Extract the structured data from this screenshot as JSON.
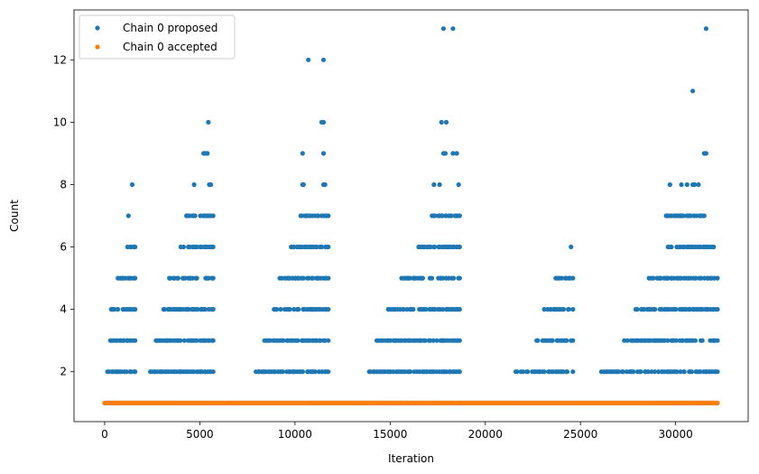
{
  "chart_data": {
    "type": "scatter",
    "title": "",
    "xlabel": "Iteration",
    "ylabel": "Count",
    "xlim": [
      -1610,
      33810
    ],
    "ylim": [
      0.4,
      13.6
    ],
    "xticks": [
      0,
      5000,
      10000,
      15000,
      20000,
      25000,
      30000
    ],
    "xtick_labels": [
      "0",
      "5000",
      "10000",
      "15000",
      "20000",
      "25000",
      "30000"
    ],
    "yticks": [
      2,
      4,
      6,
      8,
      10,
      12
    ],
    "ytick_labels": [
      "2",
      "4",
      "6",
      "8",
      "10",
      "12"
    ],
    "grid": false,
    "legend_position": "top-left",
    "series": [
      {
        "name": "Chain 0 proposed",
        "color": "#1f77b4",
        "bands": [
          {
            "y": 1,
            "ranges": [
              [
                0,
                32200
              ]
            ]
          },
          {
            "y": 2,
            "ranges": [
              [
                150,
                1600
              ],
              [
                2400,
                5700
              ],
              [
                7950,
                11750
              ],
              [
                13900,
                18650
              ],
              [
                21600,
                24600
              ],
              [
                26100,
                32200
              ]
            ]
          },
          {
            "y": 3,
            "ranges": [
              [
                300,
                1600
              ],
              [
                2700,
                5700
              ],
              [
                8400,
                11750
              ],
              [
                14300,
                18650
              ],
              [
                22700,
                24600
              ],
              [
                27300,
                32200
              ]
            ]
          },
          {
            "y": 4,
            "ranges": [
              [
                350,
                1600
              ],
              [
                3100,
                5700
              ],
              [
                8900,
                11750
              ],
              [
                14900,
                18650
              ],
              [
                23100,
                24600
              ],
              [
                27900,
                32200
              ]
            ]
          },
          {
            "y": 5,
            "ranges": [
              [
                700,
                1600
              ],
              [
                3400,
                5700
              ],
              [
                9200,
                11750
              ],
              [
                15600,
                18650
              ],
              [
                23700,
                24600
              ],
              [
                28600,
                32200
              ]
            ]
          },
          {
            "y": 6,
            "ranges": [
              [
                1200,
                1600
              ],
              [
                4000,
                5700
              ],
              [
                9800,
                11750
              ],
              [
                16500,
                18650
              ],
              [
                29600,
                32000
              ]
            ]
          },
          {
            "y": 7,
            "ranges": [
              [
                4300,
                5700
              ],
              [
                10300,
                11750
              ],
              [
                17200,
                18650
              ],
              [
                29500,
                31500
              ]
            ]
          }
        ],
        "points": [
          {
            "x": 1450,
            "y": 8
          },
          {
            "x": 1250,
            "y": 7
          },
          {
            "x": 24500,
            "y": 6
          },
          {
            "x": 4700,
            "y": 8
          },
          {
            "x": 5500,
            "y": 8
          },
          {
            "x": 5580,
            "y": 8
          },
          {
            "x": 5200,
            "y": 9
          },
          {
            "x": 5300,
            "y": 9
          },
          {
            "x": 5400,
            "y": 9
          },
          {
            "x": 5450,
            "y": 10
          },
          {
            "x": 10400,
            "y": 8
          },
          {
            "x": 10450,
            "y": 8
          },
          {
            "x": 11500,
            "y": 8
          },
          {
            "x": 11580,
            "y": 8
          },
          {
            "x": 10400,
            "y": 9
          },
          {
            "x": 11500,
            "y": 9
          },
          {
            "x": 11400,
            "y": 10
          },
          {
            "x": 11500,
            "y": 10
          },
          {
            "x": 10700,
            "y": 12
          },
          {
            "x": 11500,
            "y": 12
          },
          {
            "x": 17300,
            "y": 8
          },
          {
            "x": 17600,
            "y": 8
          },
          {
            "x": 18600,
            "y": 8
          },
          {
            "x": 17800,
            "y": 9
          },
          {
            "x": 17900,
            "y": 9
          },
          {
            "x": 18300,
            "y": 9
          },
          {
            "x": 18500,
            "y": 9
          },
          {
            "x": 17700,
            "y": 10
          },
          {
            "x": 17950,
            "y": 10
          },
          {
            "x": 17800,
            "y": 13
          },
          {
            "x": 18300,
            "y": 13
          },
          {
            "x": 29700,
            "y": 8
          },
          {
            "x": 30300,
            "y": 8
          },
          {
            "x": 30600,
            "y": 8
          },
          {
            "x": 30900,
            "y": 8
          },
          {
            "x": 31000,
            "y": 8
          },
          {
            "x": 31200,
            "y": 8
          },
          {
            "x": 31500,
            "y": 9
          },
          {
            "x": 31600,
            "y": 9
          },
          {
            "x": 30900,
            "y": 11
          },
          {
            "x": 31600,
            "y": 13
          }
        ]
      },
      {
        "name": "Chain 0 accepted",
        "color": "#ff7f0e",
        "bands": [
          {
            "y": 1,
            "ranges": [
              [
                0,
                32200
              ]
            ]
          }
        ],
        "points": []
      }
    ]
  }
}
